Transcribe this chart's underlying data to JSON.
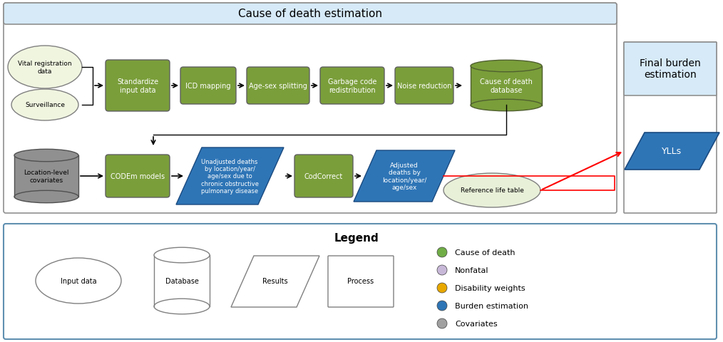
{
  "title_main": "Cause of death estimation",
  "title_final": "Final burden\nestimation",
  "bg_header": "#d6eaf8",
  "green": "#7a9e3a",
  "blue": "#2e75b6",
  "gray_cov": "#909090",
  "ref_table_color": "#e8f0d8",
  "legend_title": "Legend",
  "legend_items": [
    {
      "label": "Cause of death",
      "color": "#70ad47"
    },
    {
      "label": "Nonfatal",
      "color": "#c8b8d8"
    },
    {
      "label": "Disability weights",
      "color": "#e8a800"
    },
    {
      "label": "Burden estimation",
      "color": "#2e75b6"
    },
    {
      "label": "Covariates",
      "color": "#a0a0a0"
    }
  ]
}
